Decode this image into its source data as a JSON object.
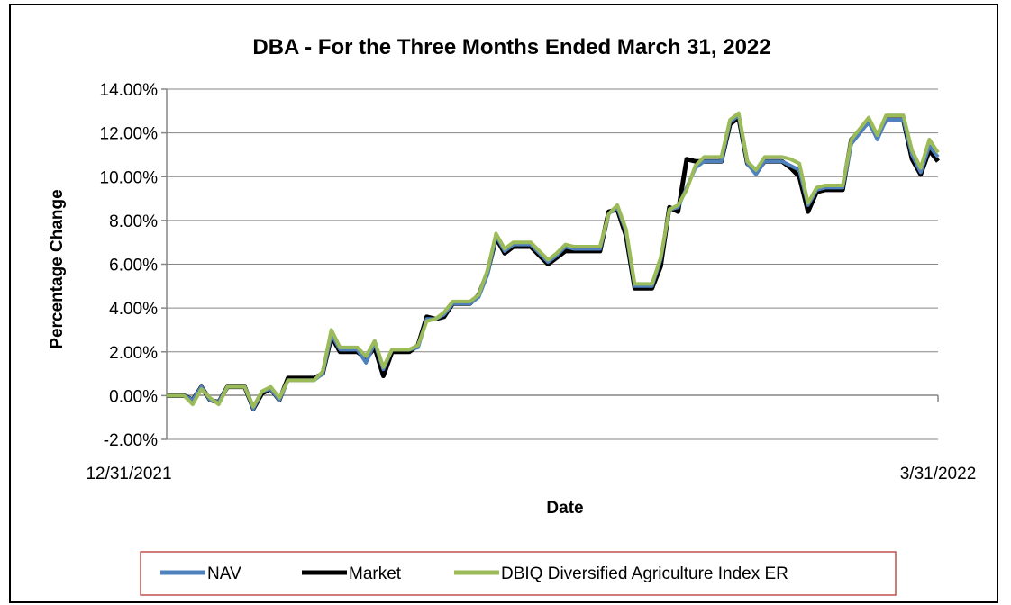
{
  "chart_data": {
    "type": "line",
    "title": "DBA - For the Three Months Ended March 31, 2022",
    "xlabel": "Date",
    "ylabel": "Percentage Change",
    "x_start_label": "12/31/2021",
    "x_end_label": "3/31/2022",
    "ylim": [
      -0.02,
      0.14
    ],
    "yticks": [
      -0.02,
      0.0,
      0.02,
      0.04,
      0.06,
      0.08,
      0.1,
      0.12,
      0.14
    ],
    "ytick_labels": [
      "-2.00%",
      "0.00%",
      "2.00%",
      "4.00%",
      "6.00%",
      "8.00%",
      "10.00%",
      "12.00%",
      "14.00%"
    ],
    "grid": true,
    "legend_position": "bottom",
    "series": [
      {
        "name": "NAV",
        "color": "#4f81bd",
        "values": [
          0.0,
          0.0,
          0.0,
          -0.002,
          0.004,
          -0.002,
          -0.003,
          0.004,
          0.004,
          0.004,
          -0.006,
          0.002,
          0.003,
          -0.002,
          0.007,
          0.007,
          0.007,
          0.007,
          0.01,
          0.028,
          0.021,
          0.021,
          0.021,
          0.015,
          0.024,
          0.012,
          0.021,
          0.021,
          0.021,
          0.022,
          0.035,
          0.035,
          0.037,
          0.042,
          0.042,
          0.042,
          0.045,
          0.055,
          0.073,
          0.066,
          0.069,
          0.069,
          0.069,
          0.065,
          0.061,
          0.064,
          0.068,
          0.067,
          0.067,
          0.067,
          0.067,
          0.083,
          0.086,
          0.075,
          0.05,
          0.05,
          0.05,
          0.062,
          0.085,
          0.086,
          0.095,
          0.104,
          0.107,
          0.107,
          0.107,
          0.125,
          0.128,
          0.106,
          0.101,
          0.107,
          0.107,
          0.107,
          0.105,
          0.103,
          0.087,
          0.094,
          0.095,
          0.095,
          0.095,
          0.115,
          0.12,
          0.125,
          0.117,
          0.126,
          0.126,
          0.126,
          0.11,
          0.102,
          0.114,
          0.109
        ]
      },
      {
        "name": "Market",
        "color": "#000000",
        "values": [
          0.0,
          0.0,
          0.0,
          -0.002,
          0.004,
          -0.002,
          -0.003,
          0.004,
          0.004,
          0.004,
          -0.006,
          0.001,
          0.003,
          -0.002,
          0.008,
          0.008,
          0.008,
          0.008,
          0.01,
          0.027,
          0.02,
          0.02,
          0.02,
          0.017,
          0.022,
          0.009,
          0.02,
          0.02,
          0.02,
          0.023,
          0.036,
          0.035,
          0.036,
          0.042,
          0.042,
          0.042,
          0.046,
          0.056,
          0.072,
          0.065,
          0.068,
          0.068,
          0.068,
          0.064,
          0.06,
          0.063,
          0.066,
          0.066,
          0.066,
          0.066,
          0.066,
          0.084,
          0.085,
          0.073,
          0.049,
          0.049,
          0.049,
          0.059,
          0.086,
          0.084,
          0.108,
          0.107,
          0.107,
          0.107,
          0.107,
          0.124,
          0.127,
          0.106,
          0.102,
          0.107,
          0.107,
          0.107,
          0.104,
          0.1,
          0.084,
          0.093,
          0.094,
          0.094,
          0.094,
          0.117,
          0.121,
          0.125,
          0.119,
          0.126,
          0.126,
          0.126,
          0.108,
          0.101,
          0.112,
          0.107
        ]
      },
      {
        "name": "DBIQ Diversified Agriculture Index ER",
        "color": "#9bbb59",
        "values": [
          0.0,
          0.0,
          0.0,
          -0.004,
          0.003,
          -0.001,
          -0.004,
          0.004,
          0.004,
          0.004,
          -0.005,
          0.002,
          0.004,
          -0.001,
          0.007,
          0.007,
          0.007,
          0.007,
          0.011,
          0.03,
          0.022,
          0.022,
          0.022,
          0.018,
          0.025,
          0.013,
          0.021,
          0.021,
          0.021,
          0.023,
          0.034,
          0.035,
          0.038,
          0.043,
          0.043,
          0.043,
          0.046,
          0.057,
          0.074,
          0.067,
          0.07,
          0.07,
          0.07,
          0.066,
          0.062,
          0.065,
          0.069,
          0.068,
          0.068,
          0.068,
          0.068,
          0.083,
          0.087,
          0.076,
          0.051,
          0.051,
          0.051,
          0.063,
          0.085,
          0.087,
          0.094,
          0.105,
          0.109,
          0.109,
          0.109,
          0.126,
          0.129,
          0.107,
          0.103,
          0.109,
          0.109,
          0.109,
          0.108,
          0.106,
          0.088,
          0.095,
          0.096,
          0.096,
          0.096,
          0.117,
          0.122,
          0.127,
          0.119,
          0.128,
          0.128,
          0.128,
          0.112,
          0.104,
          0.117,
          0.111
        ]
      }
    ]
  }
}
